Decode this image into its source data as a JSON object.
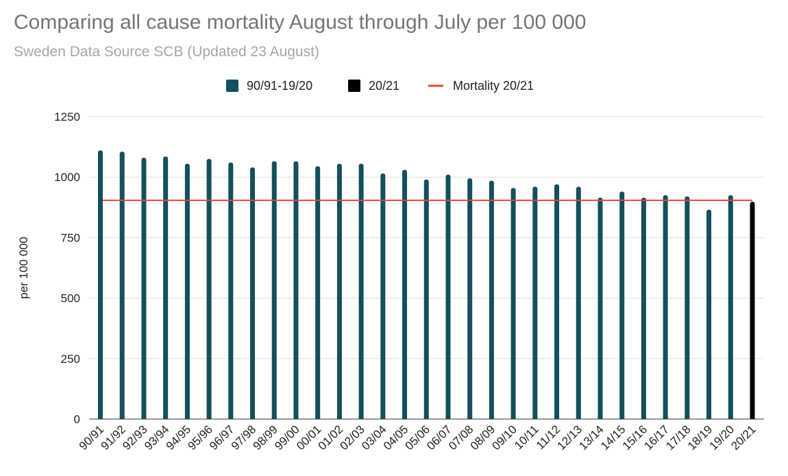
{
  "title": "Comparing all cause mortality August through July per 100 000",
  "subtitle": "Sweden Data Source SCB (Updated 23 August)",
  "chart_data": {
    "type": "bar",
    "title": "Comparing all cause mortality August through July per 100 000",
    "subtitle": "Sweden Data Source SCB (Updated 23 August)",
    "xlabel": "",
    "ylabel": "per 100 000",
    "ylim": [
      0,
      1250
    ],
    "yticks": [
      0,
      250,
      500,
      750,
      1000,
      1250
    ],
    "grid": true,
    "legend_position": "top",
    "categories": [
      "90/91",
      "91/92",
      "92/93",
      "93/94",
      "94/95",
      "95/96",
      "96/97",
      "97/98",
      "98/99",
      "99/00",
      "00/01",
      "01/02",
      "02/03",
      "03/04",
      "04/05",
      "05/06",
      "06/07",
      "07/08",
      "08/09",
      "09/10",
      "10/11",
      "11/12",
      "12/13",
      "13/14",
      "14/15",
      "15/16",
      "16/17",
      "17/18",
      "18/19",
      "19/20",
      "20/21"
    ],
    "series": [
      {
        "name": "90/91-19/20",
        "color": "#134f5c",
        "values": [
          1110,
          1105,
          1080,
          1085,
          1055,
          1075,
          1060,
          1040,
          1065,
          1065,
          1045,
          1055,
          1055,
          1015,
          1030,
          990,
          1010,
          995,
          985,
          955,
          960,
          970,
          960,
          915,
          940,
          915,
          925,
          920,
          865,
          925,
          null
        ]
      },
      {
        "name": "20/21",
        "color": "#000000",
        "values": [
          null,
          null,
          null,
          null,
          null,
          null,
          null,
          null,
          null,
          null,
          null,
          null,
          null,
          null,
          null,
          null,
          null,
          null,
          null,
          null,
          null,
          null,
          null,
          null,
          null,
          null,
          null,
          null,
          null,
          null,
          898
        ]
      }
    ],
    "reference_line": {
      "name": "Mortality 20/21",
      "value": 904,
      "color": "#dd4b39"
    }
  }
}
